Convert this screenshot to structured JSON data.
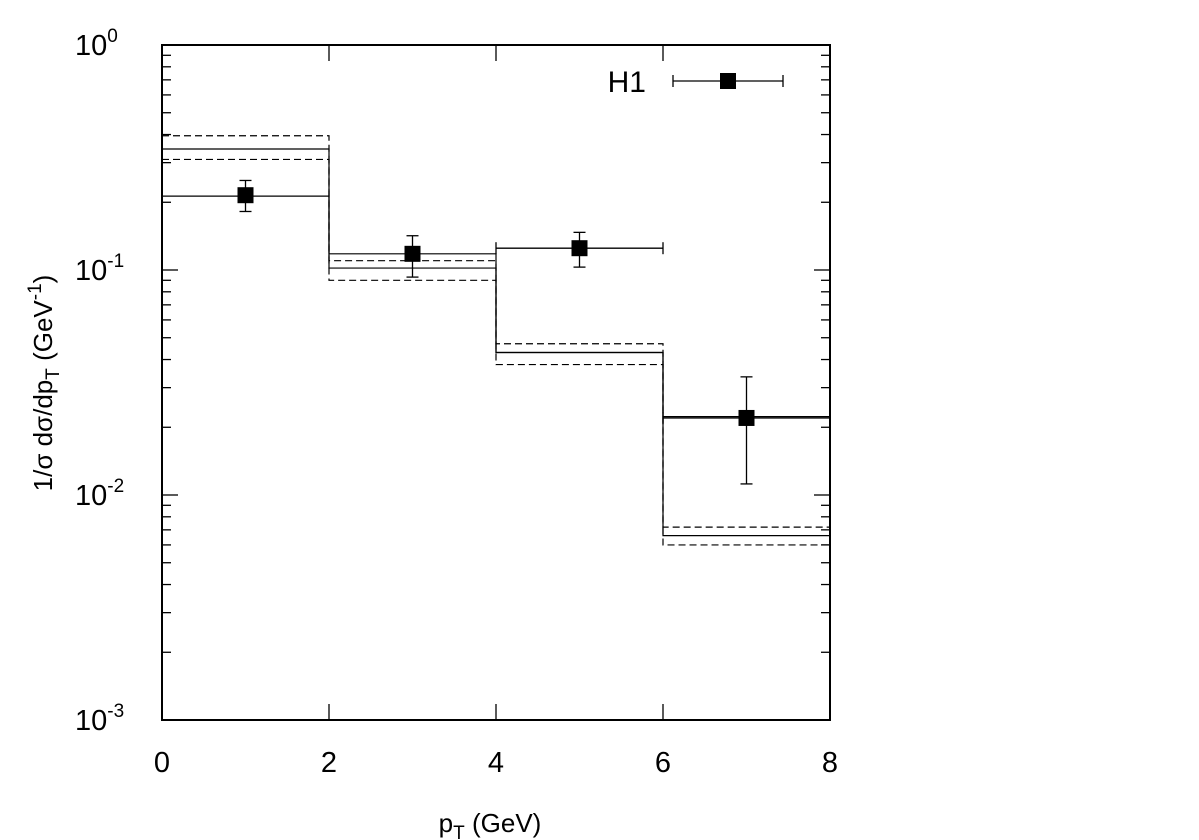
{
  "chart_data": {
    "type": "scatter",
    "xlabel": {
      "base": "p",
      "sub": "T",
      "rest": " (GeV)"
    },
    "ylabel": {
      "p1": "1/σ dσ/dp",
      "sub": "T",
      "p2": " (GeV",
      "sup": "-1",
      "p3": ")"
    },
    "x_scale": "linear",
    "y_scale": "log",
    "xlim": [
      0,
      8
    ],
    "ylim": [
      0.001,
      1
    ],
    "x_ticks": [
      "0",
      "2",
      "4",
      "6",
      "8"
    ],
    "y_ticks": [
      {
        "base": "10",
        "exp": "0"
      },
      {
        "base": "10",
        "exp": "-1"
      },
      {
        "base": "10",
        "exp": "-2"
      },
      {
        "base": "10",
        "exp": "-3"
      }
    ],
    "grid": false,
    "legend": {
      "position": "top-right",
      "label": "H1"
    },
    "points": [
      {
        "x": 1,
        "y": 0.215,
        "ylow": 0.182,
        "yhigh": 0.25,
        "xlow": 1,
        "xhigh": 1
      },
      {
        "x": 3,
        "y": 0.118,
        "ylow": 0.093,
        "yhigh": 0.142,
        "xlow": 3,
        "xhigh": 3
      },
      {
        "x": 5,
        "y": 0.125,
        "ylow": 0.103,
        "yhigh": 0.147,
        "xlow": 4,
        "xhigh": 6
      },
      {
        "x": 7,
        "y": 0.022,
        "ylow": 0.0112,
        "yhigh": 0.0335,
        "xlow": 6,
        "xhigh": 8
      }
    ],
    "histograms": [
      {
        "style": "solid",
        "edges": [
          0,
          2,
          4,
          6,
          8
        ],
        "values": [
          0.345,
          0.102,
          0.043,
          0.0066
        ]
      },
      {
        "style": "solid",
        "edges": [
          0,
          2,
          4,
          6,
          8
        ],
        "values": [
          0.213,
          0.118,
          0.043,
          0.0223
        ]
      },
      {
        "style": "dashed",
        "edges": [
          0,
          2,
          4,
          6,
          8
        ],
        "values": [
          0.395,
          0.11,
          0.047,
          0.0072
        ]
      },
      {
        "style": "dashed",
        "edges": [
          0,
          2,
          4,
          6,
          8
        ],
        "values": [
          0.31,
          0.09,
          0.038,
          0.006
        ]
      }
    ]
  }
}
